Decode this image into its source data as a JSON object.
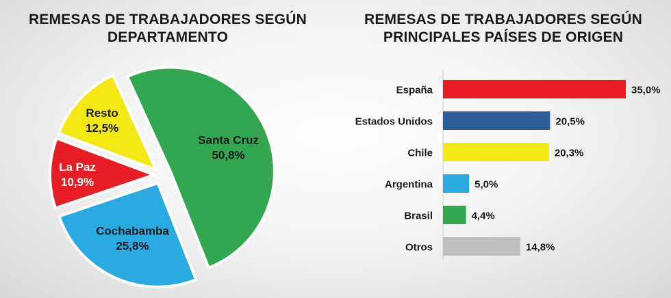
{
  "chart_data": [
    {
      "type": "pie",
      "title_lines": [
        "REMESAS DE TRABAJADORES SEGÚN",
        "DEPARTAMENTO"
      ],
      "slices": [
        {
          "label": "Santa Cruz",
          "value": 50.8,
          "value_label": "50,8%",
          "color": "#33a650",
          "text_color": "#1a1a1a"
        },
        {
          "label": "Cochabamba",
          "value": 25.8,
          "value_label": "25,8%",
          "color": "#29abe2",
          "text_color": "#1a1a1a"
        },
        {
          "label": "La Paz",
          "value": 10.9,
          "value_label": "10,9%",
          "color": "#e81c24",
          "text_color": "#ffffff"
        },
        {
          "label": "Resto",
          "value": 12.5,
          "value_label": "12,5%",
          "color": "#f4e813",
          "text_color": "#1a1a1a"
        }
      ]
    },
    {
      "type": "bar",
      "orientation": "horizontal",
      "title_lines": [
        "REMESAS DE TRABAJADORES SEGÚN",
        "PRINCIPALES PAÍSES DE ORIGEN"
      ],
      "categories": [
        "España",
        "Estados Unidos",
        "Chile",
        "Argentina",
        "Brasil",
        "Otros"
      ],
      "values": [
        35.0,
        20.5,
        20.3,
        5.0,
        4.4,
        14.8
      ],
      "value_labels": [
        "35,0%",
        "20,5%",
        "20,3%",
        "5,0%",
        "4,4%",
        "14,8%"
      ],
      "colors": [
        "#e81c24",
        "#2e5e97",
        "#f4e813",
        "#29abe2",
        "#33a650",
        "#bfbfbf"
      ],
      "xlim": [
        0,
        35
      ]
    }
  ]
}
